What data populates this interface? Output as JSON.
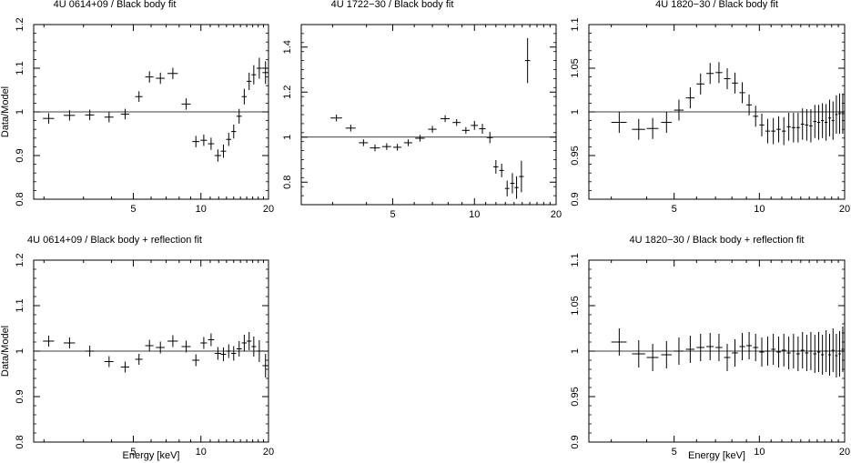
{
  "figure": {
    "shared_ylabel": "Data/Model",
    "shared_xlabel": "Energy [keV]"
  },
  "chart_data": [
    {
      "type": "scatter",
      "title": "4U 0614+09 / Black body fit",
      "xlabel": "",
      "ylabel": "Data/Model",
      "xscale": "log",
      "xlim": [
        1.8,
        20
      ],
      "ylim": [
        0.8,
        1.2
      ],
      "xticks": [
        5,
        10,
        20
      ],
      "yticks": [
        0.8,
        0.9,
        1,
        1.1,
        1.2
      ],
      "reference_line": 1,
      "points": [
        {
          "x": 2.1,
          "y": 0.985,
          "xerr": 0.12,
          "yerr": 0.012
        },
        {
          "x": 2.6,
          "y": 0.992,
          "xerr": 0.15,
          "yerr": 0.012
        },
        {
          "x": 3.2,
          "y": 0.993,
          "xerr": 0.15,
          "yerr": 0.012
        },
        {
          "x": 3.9,
          "y": 0.988,
          "xerr": 0.18,
          "yerr": 0.012
        },
        {
          "x": 4.6,
          "y": 0.995,
          "xerr": 0.2,
          "yerr": 0.012
        },
        {
          "x": 5.3,
          "y": 1.035,
          "xerr": 0.2,
          "yerr": 0.012
        },
        {
          "x": 5.9,
          "y": 1.08,
          "xerr": 0.25,
          "yerr": 0.013
        },
        {
          "x": 6.6,
          "y": 1.077,
          "xerr": 0.3,
          "yerr": 0.013
        },
        {
          "x": 7.5,
          "y": 1.088,
          "xerr": 0.4,
          "yerr": 0.013
        },
        {
          "x": 8.6,
          "y": 1.018,
          "xerr": 0.4,
          "yerr": 0.013
        },
        {
          "x": 9.5,
          "y": 0.932,
          "xerr": 0.35,
          "yerr": 0.013
        },
        {
          "x": 10.3,
          "y": 0.935,
          "xerr": 0.35,
          "yerr": 0.013
        },
        {
          "x": 11.1,
          "y": 0.927,
          "xerr": 0.35,
          "yerr": 0.014
        },
        {
          "x": 11.9,
          "y": 0.9,
          "xerr": 0.4,
          "yerr": 0.014
        },
        {
          "x": 12.6,
          "y": 0.91,
          "xerr": 0.35,
          "yerr": 0.015
        },
        {
          "x": 13.3,
          "y": 0.937,
          "xerr": 0.35,
          "yerr": 0.015
        },
        {
          "x": 14.0,
          "y": 0.955,
          "xerr": 0.35,
          "yerr": 0.016
        },
        {
          "x": 14.8,
          "y": 0.99,
          "xerr": 0.4,
          "yerr": 0.017
        },
        {
          "x": 15.6,
          "y": 1.035,
          "xerr": 0.4,
          "yerr": 0.018
        },
        {
          "x": 16.4,
          "y": 1.07,
          "xerr": 0.4,
          "yerr": 0.02
        },
        {
          "x": 17.2,
          "y": 1.085,
          "xerr": 0.4,
          "yerr": 0.022
        },
        {
          "x": 18.2,
          "y": 1.1,
          "xerr": 0.5,
          "yerr": 0.024
        },
        {
          "x": 19.4,
          "y": 1.09,
          "xerr": 0.6,
          "yerr": 0.026
        }
      ]
    },
    {
      "type": "scatter",
      "title": "4U 1722−30 / Black body fit",
      "xlabel": "",
      "ylabel": "",
      "xscale": "log",
      "xlim": [
        2.3,
        20
      ],
      "ylim": [
        0.7,
        1.5
      ],
      "xticks": [
        5,
        10,
        20
      ],
      "yticks": [
        0.8,
        1,
        1.2,
        1.4
      ],
      "reference_line": 1,
      "points": [
        {
          "x": 3.1,
          "y": 1.085,
          "xerr": 0.15,
          "yerr": 0.015
        },
        {
          "x": 3.5,
          "y": 1.04,
          "xerr": 0.15,
          "yerr": 0.015
        },
        {
          "x": 3.9,
          "y": 0.975,
          "xerr": 0.15,
          "yerr": 0.015
        },
        {
          "x": 4.3,
          "y": 0.952,
          "xerr": 0.18,
          "yerr": 0.015
        },
        {
          "x": 4.75,
          "y": 0.958,
          "xerr": 0.18,
          "yerr": 0.015
        },
        {
          "x": 5.2,
          "y": 0.955,
          "xerr": 0.18,
          "yerr": 0.015
        },
        {
          "x": 5.7,
          "y": 0.975,
          "xerr": 0.2,
          "yerr": 0.015
        },
        {
          "x": 6.3,
          "y": 0.995,
          "xerr": 0.25,
          "yerr": 0.015
        },
        {
          "x": 7.0,
          "y": 1.035,
          "xerr": 0.25,
          "yerr": 0.015
        },
        {
          "x": 7.8,
          "y": 1.082,
          "xerr": 0.3,
          "yerr": 0.015
        },
        {
          "x": 8.6,
          "y": 1.065,
          "xerr": 0.3,
          "yerr": 0.015
        },
        {
          "x": 9.3,
          "y": 1.03,
          "xerr": 0.3,
          "yerr": 0.015
        },
        {
          "x": 10.0,
          "y": 1.052,
          "xerr": 0.3,
          "yerr": 0.02
        },
        {
          "x": 10.7,
          "y": 1.037,
          "xerr": 0.3,
          "yerr": 0.022
        },
        {
          "x": 11.4,
          "y": 0.998,
          "xerr": 0.3,
          "yerr": 0.025
        },
        {
          "x": 12.0,
          "y": 0.868,
          "xerr": 0.25,
          "yerr": 0.03
        },
        {
          "x": 12.6,
          "y": 0.852,
          "xerr": 0.25,
          "yerr": 0.03
        },
        {
          "x": 13.2,
          "y": 0.772,
          "xerr": 0.25,
          "yerr": 0.035
        },
        {
          "x": 13.8,
          "y": 0.795,
          "xerr": 0.25,
          "yerr": 0.045
        },
        {
          "x": 14.3,
          "y": 0.776,
          "xerr": 0.25,
          "yerr": 0.05
        },
        {
          "x": 14.9,
          "y": 0.825,
          "xerr": 0.3,
          "yerr": 0.07
        },
        {
          "x": 15.7,
          "y": 1.34,
          "xerr": 0.35,
          "yerr": 0.1
        }
      ]
    },
    {
      "type": "scatter",
      "title": "4U 1820−30 / Black body fit",
      "xlabel": "",
      "ylabel": "",
      "xscale": "log",
      "xlim": [
        2.5,
        20
      ],
      "ylim": [
        0.9,
        1.1
      ],
      "xticks": [
        5,
        10,
        20
      ],
      "yticks": [
        0.9,
        0.95,
        1,
        1.05,
        1.1
      ],
      "reference_line": 1,
      "points": [
        {
          "x": 3.2,
          "y": 0.988,
          "xerr": 0.2,
          "yerr": 0.012
        },
        {
          "x": 3.75,
          "y": 0.98,
          "xerr": 0.2,
          "yerr": 0.012
        },
        {
          "x": 4.2,
          "y": 0.981,
          "xerr": 0.2,
          "yerr": 0.012
        },
        {
          "x": 4.7,
          "y": 0.988,
          "xerr": 0.2,
          "yerr": 0.012
        },
        {
          "x": 5.2,
          "y": 1.002,
          "xerr": 0.2,
          "yerr": 0.012
        },
        {
          "x": 5.7,
          "y": 1.016,
          "xerr": 0.2,
          "yerr": 0.012
        },
        {
          "x": 6.2,
          "y": 1.032,
          "xerr": 0.2,
          "yerr": 0.012
        },
        {
          "x": 6.7,
          "y": 1.044,
          "xerr": 0.2,
          "yerr": 0.012
        },
        {
          "x": 7.2,
          "y": 1.045,
          "xerr": 0.2,
          "yerr": 0.012
        },
        {
          "x": 7.7,
          "y": 1.038,
          "xerr": 0.2,
          "yerr": 0.012
        },
        {
          "x": 8.2,
          "y": 1.033,
          "xerr": 0.2,
          "yerr": 0.012
        },
        {
          "x": 8.7,
          "y": 1.022,
          "xerr": 0.2,
          "yerr": 0.012
        },
        {
          "x": 9.2,
          "y": 1.008,
          "xerr": 0.2,
          "yerr": 0.012
        },
        {
          "x": 9.7,
          "y": 0.995,
          "xerr": 0.2,
          "yerr": 0.012
        },
        {
          "x": 10.2,
          "y": 0.985,
          "xerr": 0.2,
          "yerr": 0.013
        },
        {
          "x": 10.7,
          "y": 0.978,
          "xerr": 0.2,
          "yerr": 0.014
        },
        {
          "x": 11.2,
          "y": 0.978,
          "xerr": 0.2,
          "yerr": 0.015
        },
        {
          "x": 11.7,
          "y": 0.98,
          "xerr": 0.2,
          "yerr": 0.015
        },
        {
          "x": 12.2,
          "y": 0.978,
          "xerr": 0.2,
          "yerr": 0.016
        },
        {
          "x": 12.7,
          "y": 0.983,
          "xerr": 0.2,
          "yerr": 0.016
        },
        {
          "x": 13.2,
          "y": 0.982,
          "xerr": 0.2,
          "yerr": 0.017
        },
        {
          "x": 13.7,
          "y": 0.982,
          "xerr": 0.2,
          "yerr": 0.017
        },
        {
          "x": 14.2,
          "y": 0.986,
          "xerr": 0.2,
          "yerr": 0.018
        },
        {
          "x": 14.7,
          "y": 0.985,
          "xerr": 0.2,
          "yerr": 0.018
        },
        {
          "x": 15.2,
          "y": 0.984,
          "xerr": 0.2,
          "yerr": 0.019
        },
        {
          "x": 15.7,
          "y": 0.989,
          "xerr": 0.2,
          "yerr": 0.019
        },
        {
          "x": 16.2,
          "y": 0.988,
          "xerr": 0.2,
          "yerr": 0.02
        },
        {
          "x": 16.7,
          "y": 0.99,
          "xerr": 0.2,
          "yerr": 0.02
        },
        {
          "x": 17.2,
          "y": 0.988,
          "xerr": 0.2,
          "yerr": 0.021
        },
        {
          "x": 17.7,
          "y": 0.993,
          "xerr": 0.2,
          "yerr": 0.021
        },
        {
          "x": 18.2,
          "y": 0.99,
          "xerr": 0.2,
          "yerr": 0.022
        },
        {
          "x": 18.7,
          "y": 0.997,
          "xerr": 0.2,
          "yerr": 0.022
        },
        {
          "x": 19.2,
          "y": 0.998,
          "xerr": 0.2,
          "yerr": 0.023
        },
        {
          "x": 19.7,
          "y": 0.998,
          "xerr": 0.2,
          "yerr": 0.023
        }
      ]
    },
    {
      "type": "scatter",
      "title": "4U 0614+09 / Black body + reflection fit",
      "xlabel": "Energy [keV]",
      "ylabel": "Data/Model",
      "xscale": "log",
      "xlim": [
        1.8,
        20
      ],
      "ylim": [
        0.8,
        1.2
      ],
      "xticks": [
        5,
        10,
        20
      ],
      "yticks": [
        0.8,
        0.9,
        1,
        1.1,
        1.2
      ],
      "reference_line": 1,
      "points": [
        {
          "x": 2.1,
          "y": 1.022,
          "xerr": 0.12,
          "yerr": 0.012
        },
        {
          "x": 2.6,
          "y": 1.018,
          "xerr": 0.15,
          "yerr": 0.012
        },
        {
          "x": 3.2,
          "y": 1.0,
          "xerr": 0.15,
          "yerr": 0.012
        },
        {
          "x": 3.9,
          "y": 0.977,
          "xerr": 0.18,
          "yerr": 0.012
        },
        {
          "x": 4.6,
          "y": 0.965,
          "xerr": 0.2,
          "yerr": 0.012
        },
        {
          "x": 5.3,
          "y": 0.982,
          "xerr": 0.2,
          "yerr": 0.012
        },
        {
          "x": 5.9,
          "y": 1.012,
          "xerr": 0.25,
          "yerr": 0.013
        },
        {
          "x": 6.6,
          "y": 1.008,
          "xerr": 0.3,
          "yerr": 0.013
        },
        {
          "x": 7.5,
          "y": 1.022,
          "xerr": 0.4,
          "yerr": 0.013
        },
        {
          "x": 8.6,
          "y": 1.01,
          "xerr": 0.4,
          "yerr": 0.013
        },
        {
          "x": 9.5,
          "y": 0.98,
          "xerr": 0.35,
          "yerr": 0.013
        },
        {
          "x": 10.3,
          "y": 1.018,
          "xerr": 0.35,
          "yerr": 0.013
        },
        {
          "x": 11.1,
          "y": 1.025,
          "xerr": 0.35,
          "yerr": 0.014
        },
        {
          "x": 11.9,
          "y": 0.995,
          "xerr": 0.4,
          "yerr": 0.014
        },
        {
          "x": 12.6,
          "y": 0.993,
          "xerr": 0.35,
          "yerr": 0.015
        },
        {
          "x": 13.3,
          "y": 1.0,
          "xerr": 0.35,
          "yerr": 0.015
        },
        {
          "x": 14.0,
          "y": 0.995,
          "xerr": 0.35,
          "yerr": 0.016
        },
        {
          "x": 14.8,
          "y": 1.005,
          "xerr": 0.4,
          "yerr": 0.017
        },
        {
          "x": 15.6,
          "y": 1.018,
          "xerr": 0.4,
          "yerr": 0.018
        },
        {
          "x": 16.4,
          "y": 1.022,
          "xerr": 0.4,
          "yerr": 0.02
        },
        {
          "x": 17.2,
          "y": 1.01,
          "xerr": 0.4,
          "yerr": 0.022
        },
        {
          "x": 18.2,
          "y": 1.0,
          "xerr": 0.5,
          "yerr": 0.024
        },
        {
          "x": 19.4,
          "y": 0.968,
          "xerr": 0.6,
          "yerr": 0.026
        }
      ]
    },
    {
      "type": "scatter",
      "title": "4U 1820−30 / Black body + reflection fit",
      "xlabel": "Energy [keV]",
      "ylabel": "",
      "xscale": "log",
      "xlim": [
        2.5,
        20
      ],
      "ylim": [
        0.9,
        1.1
      ],
      "xticks": [
        5,
        10,
        20
      ],
      "yticks": [
        0.9,
        0.95,
        1,
        1.05,
        1.1
      ],
      "reference_line": 1,
      "points": [
        {
          "x": 3.2,
          "y": 1.01,
          "xerr": 0.2,
          "yerr": 0.015
        },
        {
          "x": 3.75,
          "y": 0.997,
          "xerr": 0.2,
          "yerr": 0.015
        },
        {
          "x": 4.2,
          "y": 0.993,
          "xerr": 0.2,
          "yerr": 0.015
        },
        {
          "x": 4.7,
          "y": 0.996,
          "xerr": 0.2,
          "yerr": 0.015
        },
        {
          "x": 5.2,
          "y": 1.0,
          "xerr": 0.2,
          "yerr": 0.015
        },
        {
          "x": 5.7,
          "y": 1.002,
          "xerr": 0.2,
          "yerr": 0.015
        },
        {
          "x": 6.2,
          "y": 1.004,
          "xerr": 0.2,
          "yerr": 0.015
        },
        {
          "x": 6.7,
          "y": 1.005,
          "xerr": 0.2,
          "yerr": 0.015
        },
        {
          "x": 7.2,
          "y": 1.004,
          "xerr": 0.2,
          "yerr": 0.015
        },
        {
          "x": 7.7,
          "y": 0.993,
          "xerr": 0.2,
          "yerr": 0.015
        },
        {
          "x": 8.2,
          "y": 0.998,
          "xerr": 0.2,
          "yerr": 0.015
        },
        {
          "x": 8.7,
          "y": 1.005,
          "xerr": 0.2,
          "yerr": 0.015
        },
        {
          "x": 9.2,
          "y": 1.006,
          "xerr": 0.2,
          "yerr": 0.015
        },
        {
          "x": 9.7,
          "y": 1.004,
          "xerr": 0.2,
          "yerr": 0.015
        },
        {
          "x": 10.2,
          "y": 0.999,
          "xerr": 0.2,
          "yerr": 0.016
        },
        {
          "x": 10.7,
          "y": 1.0,
          "xerr": 0.2,
          "yerr": 0.016
        },
        {
          "x": 11.2,
          "y": 1.002,
          "xerr": 0.2,
          "yerr": 0.017
        },
        {
          "x": 11.7,
          "y": 0.999,
          "xerr": 0.2,
          "yerr": 0.017
        },
        {
          "x": 12.2,
          "y": 1.001,
          "xerr": 0.2,
          "yerr": 0.018
        },
        {
          "x": 12.7,
          "y": 0.998,
          "xerr": 0.2,
          "yerr": 0.018
        },
        {
          "x": 13.2,
          "y": 1.0,
          "xerr": 0.2,
          "yerr": 0.019
        },
        {
          "x": 13.7,
          "y": 0.997,
          "xerr": 0.2,
          "yerr": 0.019
        },
        {
          "x": 14.2,
          "y": 1.001,
          "xerr": 0.2,
          "yerr": 0.02
        },
        {
          "x": 14.7,
          "y": 0.998,
          "xerr": 0.2,
          "yerr": 0.02
        },
        {
          "x": 15.2,
          "y": 1.0,
          "xerr": 0.2,
          "yerr": 0.021
        },
        {
          "x": 15.7,
          "y": 0.997,
          "xerr": 0.2,
          "yerr": 0.021
        },
        {
          "x": 16.2,
          "y": 0.999,
          "xerr": 0.2,
          "yerr": 0.022
        },
        {
          "x": 16.7,
          "y": 0.996,
          "xerr": 0.2,
          "yerr": 0.022
        },
        {
          "x": 17.2,
          "y": 1.0,
          "xerr": 0.2,
          "yerr": 0.023
        },
        {
          "x": 17.7,
          "y": 0.996,
          "xerr": 0.2,
          "yerr": 0.023
        },
        {
          "x": 18.2,
          "y": 1.001,
          "xerr": 0.2,
          "yerr": 0.024
        },
        {
          "x": 18.7,
          "y": 0.995,
          "xerr": 0.2,
          "yerr": 0.024
        },
        {
          "x": 19.2,
          "y": 0.997,
          "xerr": 0.2,
          "yerr": 0.025
        },
        {
          "x": 19.7,
          "y": 1.002,
          "xerr": 0.2,
          "yerr": 0.025
        }
      ]
    }
  ]
}
